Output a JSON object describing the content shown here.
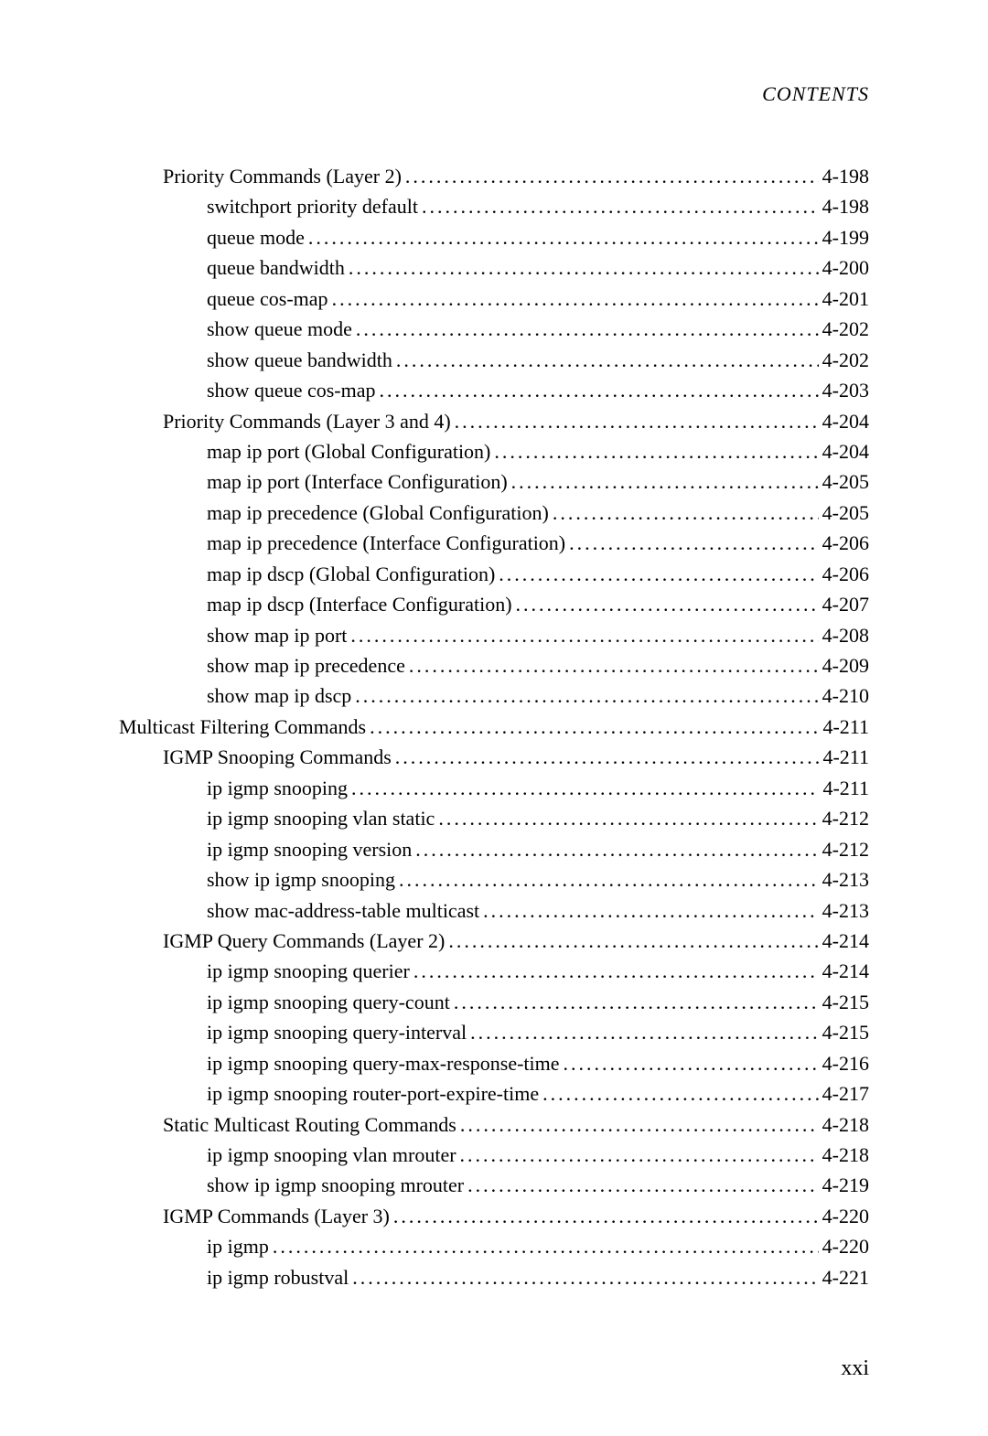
{
  "header": "CONTENTS",
  "pageNumber": "xxi",
  "entries": [
    {
      "level": 2,
      "title": "Priority Commands (Layer 2)",
      "page": "4-198"
    },
    {
      "level": 3,
      "title": "switchport priority default",
      "page": "4-198"
    },
    {
      "level": 3,
      "title": "queue mode",
      "page": "4-199"
    },
    {
      "level": 3,
      "title": "queue bandwidth",
      "page": "4-200"
    },
    {
      "level": 3,
      "title": "queue cos-map",
      "page": "4-201"
    },
    {
      "level": 3,
      "title": "show queue mode",
      "page": "4-202"
    },
    {
      "level": 3,
      "title": "show queue bandwidth",
      "page": "4-202"
    },
    {
      "level": 3,
      "title": "show queue cos-map",
      "page": "4-203"
    },
    {
      "level": 2,
      "title": "Priority Commands (Layer 3 and 4)",
      "page": "4-204"
    },
    {
      "level": 3,
      "title": "map ip port (Global Configuration)",
      "page": "4-204"
    },
    {
      "level": 3,
      "title": "map ip port (Interface Configuration)",
      "page": "4-205"
    },
    {
      "level": 3,
      "title": "map ip precedence (Global Configuration)",
      "page": "4-205"
    },
    {
      "level": 3,
      "title": "map ip precedence (Interface Configuration)",
      "page": "4-206"
    },
    {
      "level": 3,
      "title": "map ip dscp (Global Configuration)",
      "page": "4-206"
    },
    {
      "level": 3,
      "title": "map ip dscp (Interface Configuration)",
      "page": "4-207"
    },
    {
      "level": 3,
      "title": "show map ip port",
      "page": "4-208"
    },
    {
      "level": 3,
      "title": "show map ip precedence",
      "page": "4-209"
    },
    {
      "level": 3,
      "title": "show map ip dscp",
      "page": "4-210"
    },
    {
      "level": 1,
      "title": "Multicast Filtering Commands",
      "page": "4-211"
    },
    {
      "level": 2,
      "title": "IGMP Snooping Commands",
      "page": "4-211"
    },
    {
      "level": 3,
      "title": "ip igmp snooping",
      "page": "4-211"
    },
    {
      "level": 3,
      "title": "ip igmp snooping vlan static",
      "page": "4-212"
    },
    {
      "level": 3,
      "title": "ip igmp snooping version",
      "page": "4-212"
    },
    {
      "level": 3,
      "title": "show ip igmp snooping",
      "page": "4-213"
    },
    {
      "level": 3,
      "title": "show mac-address-table multicast",
      "page": "4-213"
    },
    {
      "level": 2,
      "title": "IGMP Query Commands (Layer 2)",
      "page": "4-214"
    },
    {
      "level": 3,
      "title": "ip igmp snooping querier",
      "page": "4-214"
    },
    {
      "level": 3,
      "title": "ip igmp snooping query-count",
      "page": "4-215"
    },
    {
      "level": 3,
      "title": "ip igmp snooping query-interval",
      "page": "4-215"
    },
    {
      "level": 3,
      "title": "ip igmp snooping query-max-response-time",
      "page": "4-216"
    },
    {
      "level": 3,
      "title": "ip igmp snooping router-port-expire-time",
      "page": "4-217"
    },
    {
      "level": 2,
      "title": "Static Multicast Routing Commands",
      "page": "4-218"
    },
    {
      "level": 3,
      "title": "ip igmp snooping vlan mrouter",
      "page": "4-218"
    },
    {
      "level": 3,
      "title": "show ip igmp snooping mrouter",
      "page": "4-219"
    },
    {
      "level": 2,
      "title": "IGMP Commands (Layer 3)",
      "page": "4-220"
    },
    {
      "level": 3,
      "title": "ip igmp",
      "page": "4-220"
    },
    {
      "level": 3,
      "title": "ip igmp robustval",
      "page": "4-221"
    }
  ]
}
